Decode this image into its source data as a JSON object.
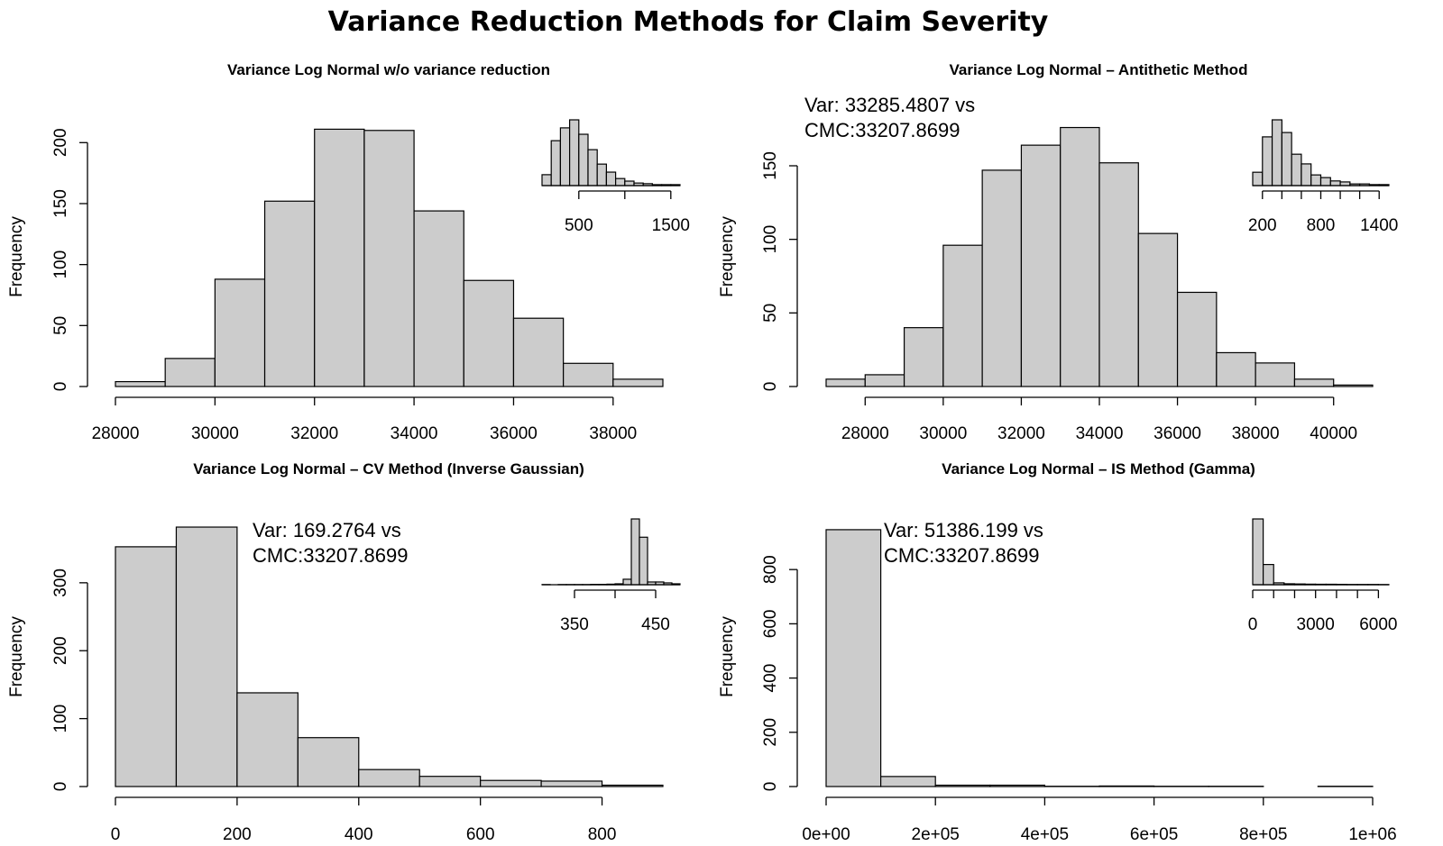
{
  "title": "Variance Reduction Methods for Claim Severity",
  "chart_data": [
    {
      "type": "histogram",
      "title": "Variance Log Normal w/o variance reduction",
      "ylabel": "Frequency",
      "color": "#cccccc",
      "bins": [
        28000,
        29000,
        30000,
        31000,
        32000,
        33000,
        34000,
        35000,
        36000,
        37000,
        38000,
        39000
      ],
      "values": [
        4,
        23,
        88,
        152,
        211,
        210,
        144,
        87,
        56,
        19,
        6
      ],
      "xlim": [
        28000,
        39000
      ],
      "ylim": [
        0,
        215
      ],
      "xticks": [
        28000,
        30000,
        32000,
        34000,
        36000,
        38000
      ],
      "yticks": [
        0,
        50,
        100,
        150,
        200
      ],
      "inset": {
        "type": "histogram",
        "bins": [
          100,
          200,
          300,
          400,
          500,
          600,
          700,
          800,
          900,
          1000,
          1100,
          1200,
          1300,
          1400,
          1500,
          1600
        ],
        "values": [
          34,
          140,
          180,
          205,
          160,
          112,
          67,
          42,
          22,
          14,
          8,
          6,
          3,
          3,
          3
        ],
        "xlim": [
          100,
          1600
        ],
        "xticks": [
          500,
          {
            "value": 1000,
            "label": null
          },
          1500
        ]
      }
    },
    {
      "type": "histogram",
      "title": "Variance Log Normal – Antithetic Method",
      "ylabel": "Frequency",
      "color": "#cccccc",
      "annotation": [
        "Var: 33285.4807 vs",
        "CMC:33207.8699"
      ],
      "bins": [
        27000,
        28000,
        29000,
        30000,
        31000,
        32000,
        33000,
        34000,
        35000,
        36000,
        37000,
        38000,
        39000,
        40000,
        41000
      ],
      "values": [
        5,
        8,
        40,
        96,
        147,
        164,
        176,
        152,
        104,
        64,
        23,
        16,
        5,
        1
      ],
      "xlim": [
        27000,
        41000
      ],
      "ylim": [
        0,
        180
      ],
      "xticks": [
        28000,
        30000,
        32000,
        34000,
        36000,
        38000,
        40000
      ],
      "yticks": [
        0,
        50,
        100,
        150
      ],
      "inset": {
        "type": "histogram",
        "bins": [
          100,
          200,
          300,
          400,
          500,
          600,
          700,
          800,
          900,
          1000,
          1100,
          1200,
          1300,
          1400,
          1500
        ],
        "values": [
          40,
          146,
          197,
          159,
          94,
          65,
          32,
          24,
          14,
          11,
          5,
          5,
          3,
          3
        ],
        "xlim": [
          100,
          1500
        ],
        "xticks": [
          200,
          {
            "value": 400,
            "label": null
          },
          {
            "value": 600,
            "label": null
          },
          800,
          {
            "value": 1000,
            "label": null
          },
          {
            "value": 1200,
            "label": null
          },
          1400
        ]
      }
    },
    {
      "type": "histogram",
      "title": "Variance Log Normal – CV Method (Inverse Gaussian)",
      "ylabel": "Frequency",
      "color": "#cccccc",
      "annotation": [
        "Var: 169.2764 vs",
        "CMC:33207.8699"
      ],
      "bins": [
        0,
        100,
        200,
        300,
        400,
        500,
        600,
        700,
        800,
        900
      ],
      "values": [
        353,
        382,
        138,
        72,
        25,
        15,
        9,
        8,
        2
      ],
      "xlim": [
        0,
        900
      ],
      "ylim": [
        0,
        390
      ],
      "xticks": [
        0,
        200,
        400,
        600,
        800
      ],
      "yticks": [
        0,
        100,
        200,
        300
      ],
      "inset": {
        "type": "histogram",
        "bins": [
          310,
          320,
          330,
          340,
          350,
          360,
          370,
          380,
          390,
          400,
          410,
          420,
          430,
          440,
          450,
          460,
          470,
          480
        ],
        "values": [
          1,
          0,
          1,
          1,
          1,
          1,
          2,
          2,
          3,
          5,
          30,
          360,
          260,
          15,
          15,
          10,
          5
        ],
        "xlim": [
          310,
          480
        ],
        "xticks": [
          350,
          {
            "value": 400,
            "label": null
          },
          450
        ]
      }
    },
    {
      "type": "histogram",
      "title": "Variance Log Normal – IS Method (Gamma)",
      "ylabel": "Frequency",
      "color": "#cccccc",
      "annotation": [
        "Var: 51386.199 vs",
        "CMC:33207.8699"
      ],
      "bins": [
        0,
        100000,
        200000,
        300000,
        400000,
        500000,
        600000,
        700000,
        800000,
        900000,
        1000000
      ],
      "values": [
        947,
        37,
        5,
        5,
        1,
        2,
        1,
        1,
        0,
        1
      ],
      "xlim": [
        0,
        1000000
      ],
      "ylim": [
        0,
        960
      ],
      "xticks": [
        {
          "value": 0,
          "label": "0e+00"
        },
        {
          "value": 200000,
          "label": "2e+05"
        },
        {
          "value": 400000,
          "label": "4e+05"
        },
        {
          "value": 600000,
          "label": "6e+05"
        },
        {
          "value": 800000,
          "label": "8e+05"
        },
        {
          "value": 1000000,
          "label": "1e+06"
        }
      ],
      "yticks": [
        0,
        200,
        400,
        600,
        800
      ],
      "inset": {
        "type": "histogram",
        "bins": [
          0,
          500,
          1000,
          1500,
          2000,
          2500,
          3000,
          3500,
          4000,
          4500,
          5000,
          5500,
          6000,
          6500
        ],
        "values": [
          700,
          215,
          20,
          10,
          8,
          6,
          5,
          5,
          4,
          3,
          3,
          3,
          2
        ],
        "xlim": [
          0,
          6500
        ],
        "xticks": [
          0,
          {
            "value": 1000,
            "label": null
          },
          {
            "value": 2000,
            "label": null
          },
          3000,
          {
            "value": 4000,
            "label": null
          },
          {
            "value": 5000,
            "label": null
          },
          6000
        ]
      }
    }
  ]
}
